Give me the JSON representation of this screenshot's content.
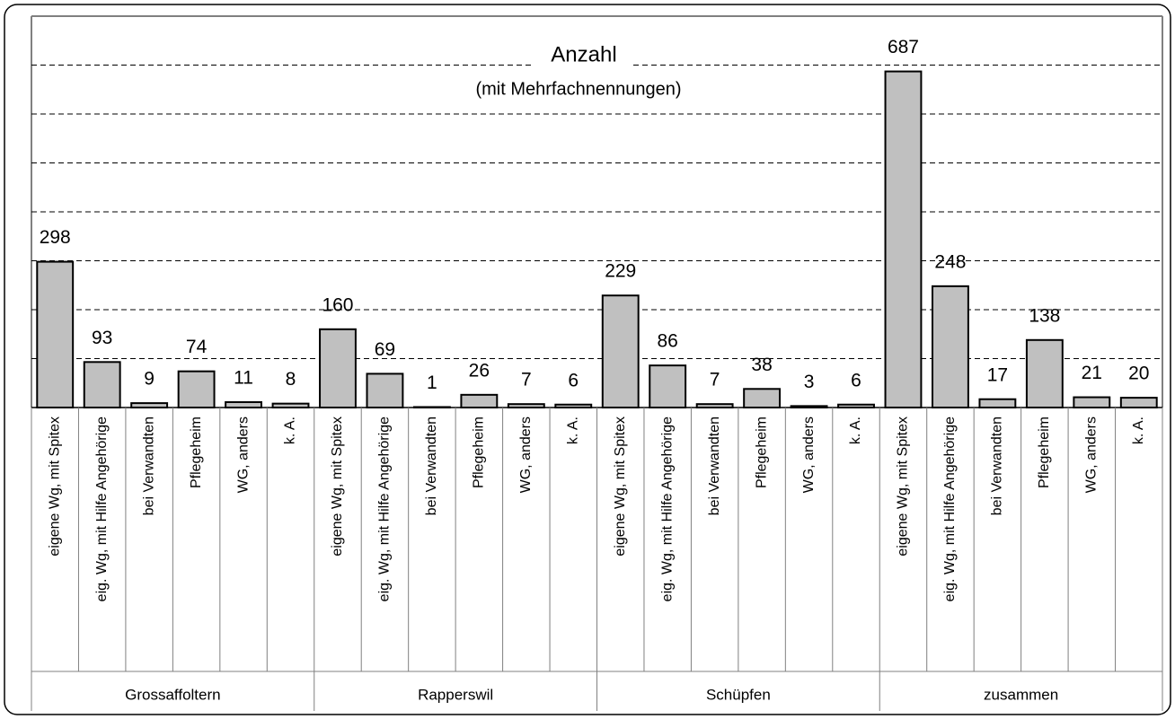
{
  "chart_data": {
    "type": "bar",
    "annotations": [
      "Anzahl",
      "(mit Mehrfachnennungen)"
    ],
    "groups": [
      "Grossaffoltern",
      "Rapperswil",
      "Schüpfen",
      "zusammen"
    ],
    "categories": [
      "eigene Wg, mit Spitex",
      "eig. Wg, mit Hilfe Angehörige",
      "bei Verwandten",
      "Pflegeheim",
      "WG, anders",
      "k. A.",
      "eigene Wg, mit Spitex",
      "eig. Wg, mit Hilfe Angehörige",
      "bei Verwandten",
      "Pflegeheim",
      "WG, anders",
      "k. A.",
      "eigene Wg, mit Spitex",
      "eig. Wg, mit Hilfe Angehörige",
      "bei Verwandten",
      "Pflegeheim",
      "WG, anders",
      "k. A.",
      "eigene Wg, mit Spitex",
      "eig. Wg, mit Hilfe Angehörige",
      "bei Verwandten",
      "Pflegeheim",
      "WG, anders",
      "k. A."
    ],
    "values": [
      298,
      93,
      9,
      74,
      11,
      8,
      160,
      69,
      1,
      26,
      7,
      6,
      229,
      86,
      7,
      38,
      3,
      6,
      687,
      248,
      17,
      138,
      21,
      20
    ],
    "color": "#c0c0c0",
    "ylim": [
      0,
      800
    ],
    "yticks": [
      100,
      200,
      300,
      400,
      500,
      600,
      700
    ],
    "grid": true
  }
}
